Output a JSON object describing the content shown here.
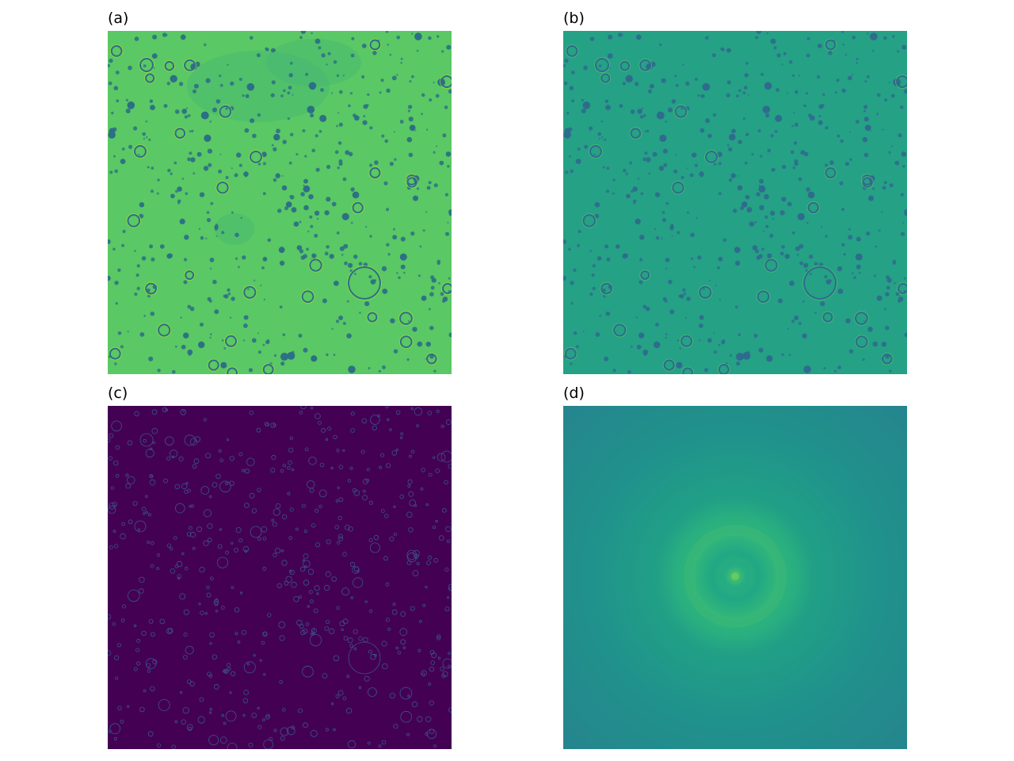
{
  "panels": [
    {
      "id": "a",
      "label": "(a)",
      "base_color": "#5ac864",
      "spot_color": "#2c6f86",
      "rim_color": "#b7de2e"
    },
    {
      "id": "b",
      "label": "(b)",
      "base_color": "#25a185",
      "spot_color": "#2f6b8e",
      "rim_color": "#5ec962"
    },
    {
      "id": "c",
      "label": "(c)",
      "base_color": "#440154",
      "spot_color": "#3b528b",
      "rim_color": "#3b528b"
    },
    {
      "id": "d",
      "label": "(d)",
      "base_color": "#24878e",
      "spot_color": "#27ad81",
      "rim_color": "#5ec962"
    }
  ]
}
